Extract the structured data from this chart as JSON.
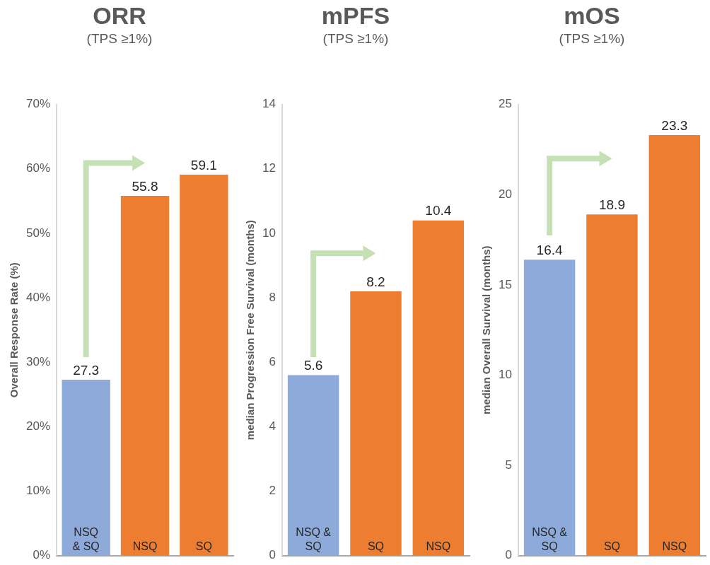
{
  "chart_data": [
    {
      "type": "bar",
      "title": "ORR",
      "subtitle": "(TPS ≥1%)",
      "ylabel": "Overall Response Rate (%)",
      "categories": [
        "NSQ & SQ",
        "NSQ",
        "SQ"
      ],
      "values": [
        27.3,
        55.8,
        59.1
      ],
      "colors": [
        "#8eaadb",
        "#ed7d31",
        "#ed7d31"
      ],
      "ylim": [
        0,
        70
      ],
      "yticks": [
        {
          "value": 0,
          "label": "0%"
        },
        {
          "value": 10,
          "label": "10%"
        },
        {
          "value": 20,
          "label": "20%"
        },
        {
          "value": 30,
          "label": "30%"
        },
        {
          "value": 40,
          "label": "40%"
        },
        {
          "value": 50,
          "label": "50%"
        },
        {
          "value": 60,
          "label": "60%"
        },
        {
          "value": 70,
          "label": "70%"
        }
      ],
      "grid": false,
      "legend": false,
      "data_labels": true
    },
    {
      "type": "bar",
      "title": "mPFS",
      "subtitle": "(TPS ≥1%)",
      "ylabel": "median Progression Free Survival (months)",
      "categories": [
        "NSQ & SQ",
        "SQ",
        "NSQ"
      ],
      "values": [
        5.6,
        8.2,
        10.4
      ],
      "colors": [
        "#8eaadb",
        "#ed7d31",
        "#ed7d31"
      ],
      "ylim": [
        0,
        14
      ],
      "yticks": [
        0,
        2,
        4,
        6,
        8,
        10,
        12,
        14
      ],
      "grid": false,
      "legend": false,
      "data_labels": true
    },
    {
      "type": "bar",
      "title": "mOS",
      "subtitle": "(TPS ≥1%)",
      "ylabel": "median Overall Survival (months)",
      "categories": [
        "NSQ & SQ",
        "SQ",
        "NSQ"
      ],
      "values": [
        16.4,
        18.9,
        23.3
      ],
      "colors": [
        "#8eaadb",
        "#ed7d31",
        "#ed7d31"
      ],
      "ylim": [
        0,
        25
      ],
      "yticks": [
        0,
        5,
        10,
        15,
        20,
        25
      ],
      "grid": false,
      "legend": false,
      "data_labels": true
    }
  ]
}
